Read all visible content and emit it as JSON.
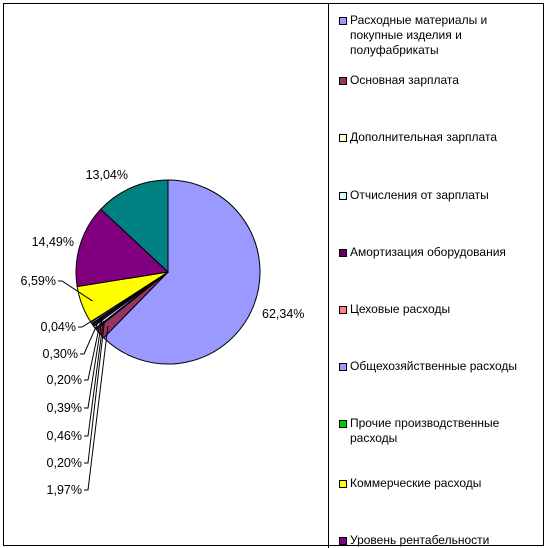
{
  "chart_data": {
    "type": "pie",
    "title": "",
    "slices": [
      {
        "label": "Расходные материалы и покупные изделия и полуфабрикаты",
        "value": 62.34,
        "value_label": "62,34%",
        "color": "#9999ff"
      },
      {
        "label": "Основная зарплата",
        "value": 1.97,
        "value_label": "1,97%",
        "color": "#993366"
      },
      {
        "label": "Дополнительная зарплата",
        "value": 0.2,
        "value_label": "0,20%",
        "color": "#ffffcc"
      },
      {
        "label": "Отчисления от зарплаты",
        "value": 0.46,
        "value_label": "0,46%",
        "color": "#ccffff"
      },
      {
        "label": "Амортизация оборудования",
        "value": 0.39,
        "value_label": "0,39%",
        "color": "#660066"
      },
      {
        "label": "Цеховые расходы",
        "value": 0.2,
        "value_label": "0,20%",
        "color": "#ff8080"
      },
      {
        "label": "Общехозяйственные расходы",
        "value": 0.3,
        "value_label": "0,30%",
        "color": "#9999ff"
      },
      {
        "label": "Прочие производственные расходы",
        "value": 0.04,
        "value_label": "0,04%",
        "color": "#00cc00"
      },
      {
        "label": "Коммерческие расходы",
        "value": 6.59,
        "value_label": "6,59%",
        "color": "#ffff00"
      },
      {
        "label": "Уровень рентабельности",
        "value": 14.49,
        "value_label": "14,49%",
        "color": "#800080"
      },
      {
        "label": "",
        "value": 13.04,
        "value_label": "13,04%",
        "color": "#008080"
      }
    ],
    "legend_position": "right"
  }
}
